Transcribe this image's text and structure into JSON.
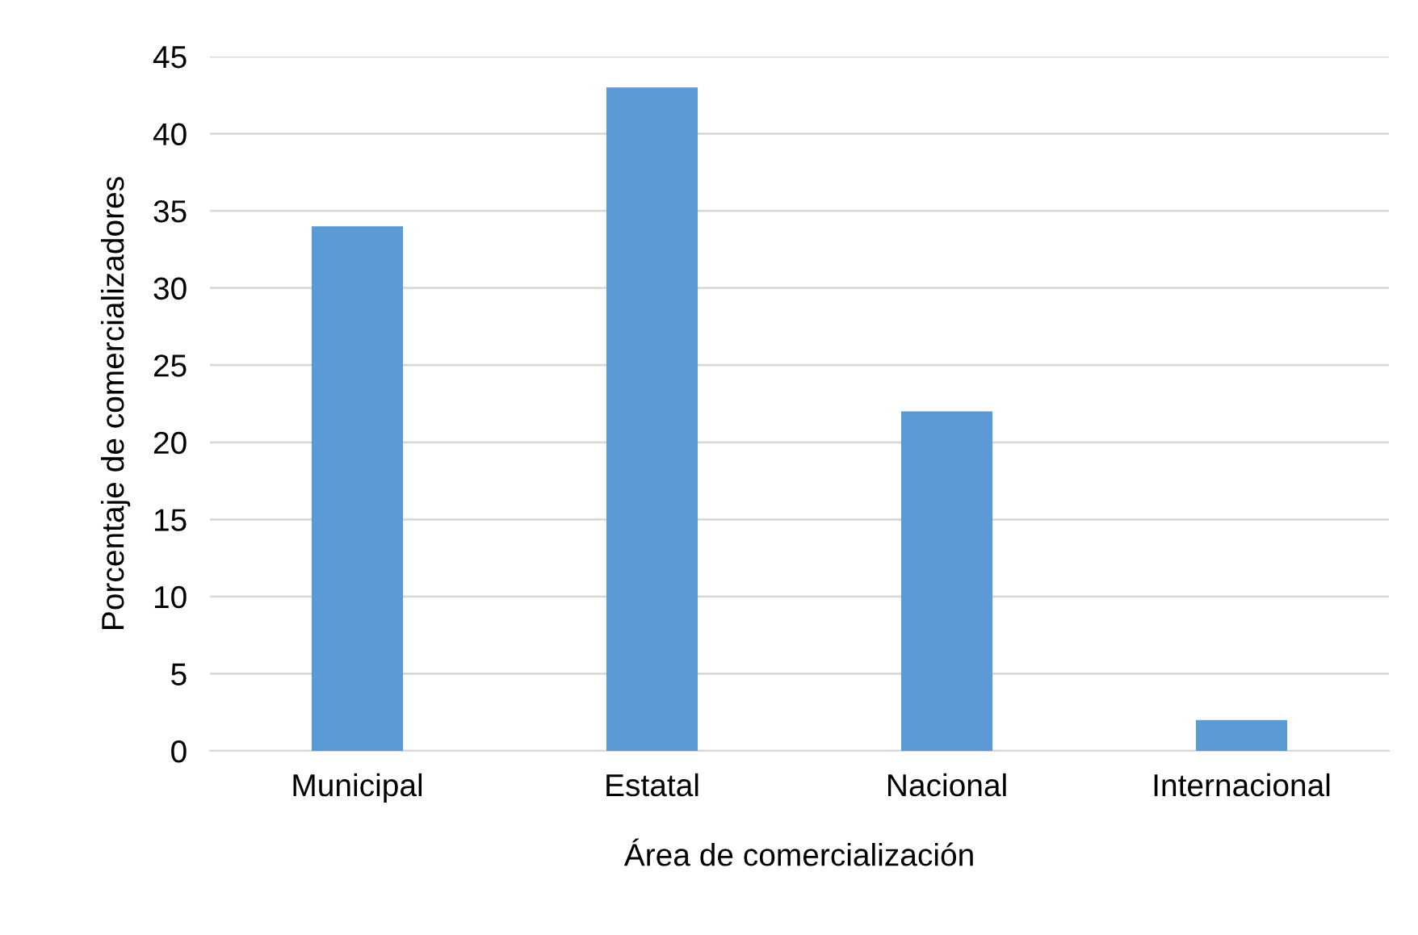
{
  "chart_data": {
    "type": "bar",
    "categories": [
      "Municipal",
      "Estatal",
      "Nacional",
      "Internacional"
    ],
    "values": [
      34,
      43,
      22,
      2
    ],
    "color": "#5b9bd5",
    "xlabel": "Área de comercialización",
    "ylabel": "Porcentaje de comercializadores",
    "ylim": [
      0,
      45
    ],
    "yticks": [
      0,
      5,
      10,
      15,
      20,
      25,
      30,
      35,
      40,
      45
    ],
    "grid": "y",
    "legend": false
  }
}
